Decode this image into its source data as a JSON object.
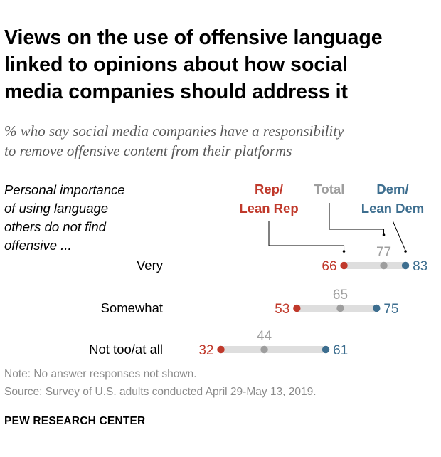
{
  "header": {
    "title_line1": "Views on the use of offensive language",
    "title_line2": "linked to opinions about how social",
    "title_line3": "media companies should address it",
    "subtitle_line1": "% who say social media companies have a responsibility",
    "subtitle_line2": "to remove offensive content from their platforms"
  },
  "row_heading": {
    "line1": "Personal importance",
    "line2": "of using language",
    "line3": "others do not find",
    "line4": "offensive ..."
  },
  "footer": {
    "note": "Note: No answer responses not shown.",
    "source": "Source: Survey of U.S. adults conducted April 29-May 13, 2019.",
    "brand": "PEW RESEARCH CENTER"
  },
  "chart_data": {
    "type": "dot",
    "title": "Views on the use of offensive language linked to opinions about how social media companies should address it",
    "subtitle": "% who say social media companies have a responsibility to remove offensive content from their platforms",
    "categories": [
      "Very",
      "Somewhat",
      "Not too/at all"
    ],
    "series": [
      {
        "name": "Rep/ Lean Rep",
        "label_lines": [
          "Rep/",
          "Lean Rep"
        ],
        "color": "#c0392b",
        "values": [
          66,
          53,
          32
        ]
      },
      {
        "name": "Total",
        "label_lines": [
          "Total"
        ],
        "color": "#9e9e9e",
        "values": [
          77,
          65,
          44
        ]
      },
      {
        "name": "Dem/ Lean Dem",
        "label_lines": [
          "Dem/",
          "Lean Dem"
        ],
        "color": "#3d6e8f",
        "values": [
          83,
          75,
          61
        ]
      }
    ],
    "range_bar_color": "#dedede",
    "xlim": [
      0,
      100
    ]
  }
}
